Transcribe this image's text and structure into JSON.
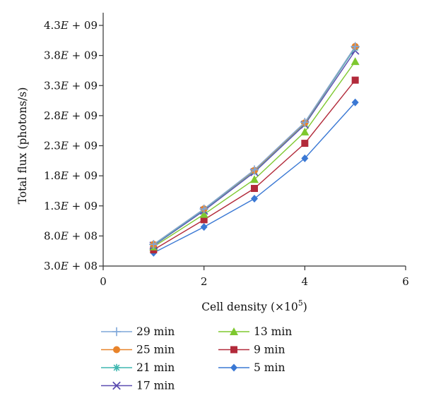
{
  "chart_data": {
    "type": "line",
    "xlabel": "Cell density (×10",
    "xlabel_sup": "5",
    "xlabel_close": ")",
    "ylabel": "Total flux (photons/s)",
    "xlim": [
      0,
      6
    ],
    "ylim": [
      300000000,
      4300000000
    ],
    "x_ticks": [
      0,
      2,
      4,
      6
    ],
    "x_tick_labels": [
      "0",
      "2",
      "4",
      "6"
    ],
    "y_ticks": [
      300000000,
      800000000,
      1300000000,
      1800000000,
      2300000000,
      2800000000,
      3300000000,
      3800000000,
      4300000000
    ],
    "y_tick_labels": [
      {
        "mantissa": "3.0",
        "exponent": "08"
      },
      {
        "mantissa": "8.0",
        "exponent": "08"
      },
      {
        "mantissa": "1.3",
        "exponent": "09"
      },
      {
        "mantissa": "1.8",
        "exponent": "09"
      },
      {
        "mantissa": "2.3",
        "exponent": "09"
      },
      {
        "mantissa": "2.8",
        "exponent": "09"
      },
      {
        "mantissa": "3.3",
        "exponent": "09"
      },
      {
        "mantissa": "3.8",
        "exponent": "09"
      },
      {
        "mantissa": "4.3",
        "exponent": "09"
      }
    ],
    "y_tick_E": "E",
    "y_tick_plus": "+",
    "grid": false,
    "legend_position": "bottom",
    "x": [
      1,
      2,
      3,
      4,
      5
    ],
    "series": [
      {
        "name": "29 min",
        "color": "#7fa7d9",
        "marker": "plus",
        "values": [
          660000000,
          1250000000,
          1900000000,
          2690000000,
          3950000000
        ]
      },
      {
        "name": "25 min",
        "color": "#e8832a",
        "marker": "circle",
        "values": [
          660000000,
          1250000000,
          1890000000,
          2680000000,
          3950000000
        ]
      },
      {
        "name": "21 min",
        "color": "#3fb7b0",
        "marker": "asterisk",
        "values": [
          650000000,
          1240000000,
          1880000000,
          2670000000,
          3930000000
        ]
      },
      {
        "name": "17 min",
        "color": "#5c4db1",
        "marker": "x",
        "values": [
          640000000,
          1220000000,
          1860000000,
          2650000000,
          3880000000
        ]
      },
      {
        "name": "13 min",
        "color": "#7ec82f",
        "marker": "triangle",
        "values": [
          620000000,
          1160000000,
          1740000000,
          2530000000,
          3700000000
        ]
      },
      {
        "name": "9 min",
        "color": "#b22a3a",
        "marker": "square",
        "values": [
          570000000,
          1070000000,
          1590000000,
          2340000000,
          3390000000
        ]
      },
      {
        "name": "5 min",
        "color": "#3a78d4",
        "marker": "diamond",
        "values": [
          520000000,
          950000000,
          1420000000,
          2090000000,
          3020000000
        ]
      }
    ]
  }
}
